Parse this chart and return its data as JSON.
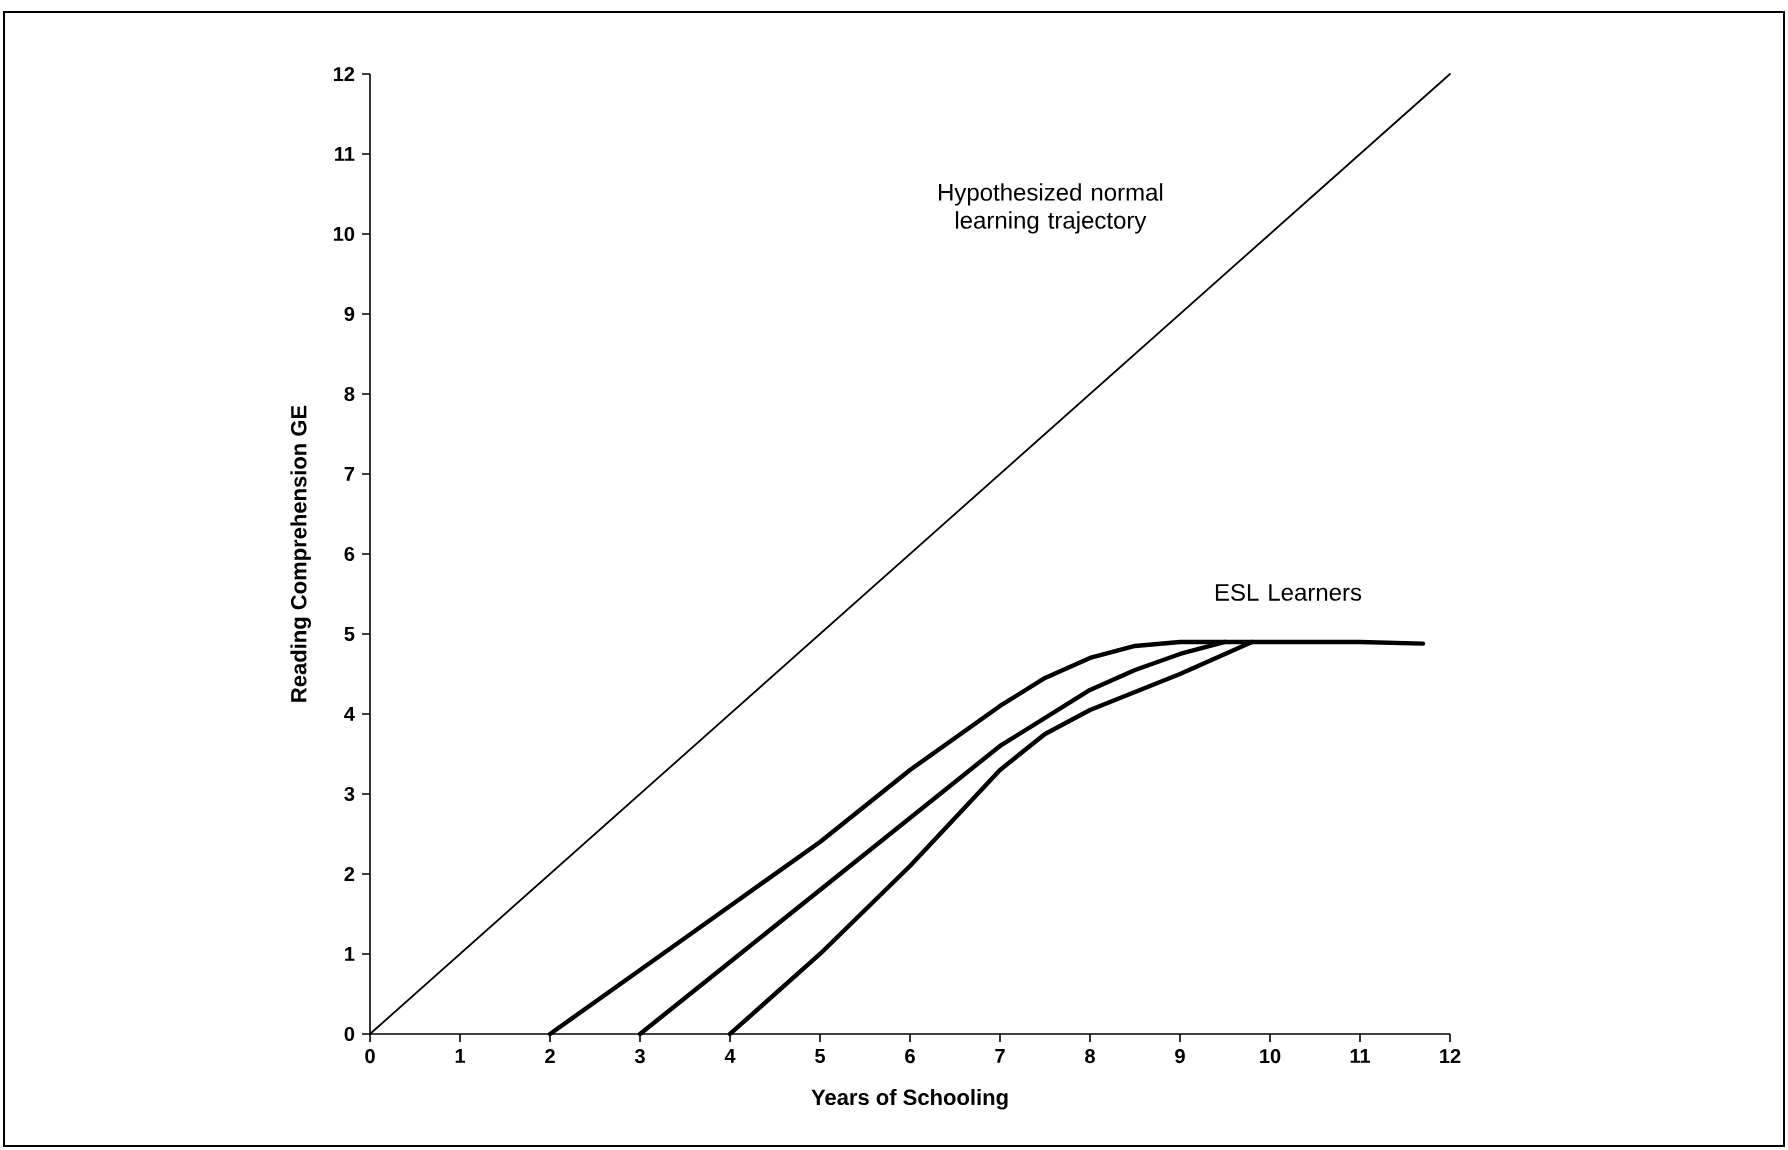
{
  "chart_data": {
    "type": "line",
    "xlabel": "Years of Schooling",
    "ylabel": "Reading Comprehension GE",
    "xlim": [
      0,
      12
    ],
    "ylim": [
      0,
      12
    ],
    "xticks": [
      0,
      1,
      2,
      3,
      4,
      5,
      6,
      7,
      8,
      9,
      10,
      11,
      12
    ],
    "yticks": [
      0,
      1,
      2,
      3,
      4,
      5,
      6,
      7,
      8,
      9,
      10,
      11,
      12
    ],
    "series": [
      {
        "color": "#000000",
        "x": [
          0,
          12
        ],
        "values": [
          0,
          12
        ]
      },
      {
        "color": "#000000",
        "x": [
          2,
          3,
          4,
          5,
          6,
          7,
          7.5,
          8,
          8.5,
          9,
          10,
          11,
          11.7
        ],
        "values": [
          0,
          0.8,
          1.6,
          2.4,
          3.3,
          4.1,
          4.45,
          4.7,
          4.85,
          4.9,
          4.9,
          4.9,
          4.88
        ]
      },
      {
        "color": "#000000",
        "x": [
          3,
          4,
          5,
          6,
          7,
          8,
          8.5,
          9,
          9.5
        ],
        "values": [
          0,
          0.9,
          1.8,
          2.7,
          3.6,
          4.3,
          4.55,
          4.75,
          4.9
        ]
      },
      {
        "color": "#000000",
        "x": [
          4,
          5,
          6,
          7,
          7.5,
          8,
          9,
          9.8
        ],
        "values": [
          0,
          1,
          2.1,
          3.3,
          3.75,
          4.05,
          4.5,
          4.9
        ]
      }
    ],
    "annotations": [
      "Hypothesized normal learning trajectory",
      "ESL Learners"
    ],
    "marker": "none",
    "line_style": "solid"
  }
}
